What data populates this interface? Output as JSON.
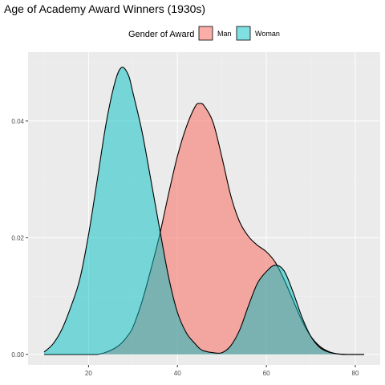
{
  "chart_data": {
    "type": "area",
    "title": "Age of Academy Award Winners (1930s)",
    "xlabel": "",
    "ylabel": "",
    "xlim": [
      6.4,
      85.6
    ],
    "ylim": [
      -0.0018,
      0.0518
    ],
    "x_ticks": [
      20,
      40,
      60,
      80
    ],
    "x_tick_labels": [
      "20",
      "40",
      "60",
      "80"
    ],
    "y_ticks": [
      0.0,
      0.02,
      0.04
    ],
    "y_tick_labels": [
      "0.00",
      "0.02",
      "0.04"
    ],
    "grid": true,
    "legend": {
      "title": "Gender of Award",
      "position": "top",
      "entries": [
        "Man",
        "Woman"
      ]
    },
    "x": [
      10,
      12,
      14,
      16,
      18,
      20,
      22,
      24,
      26,
      27.5,
      29,
      30,
      32,
      34,
      36,
      38,
      40,
      42,
      44,
      45,
      46,
      48,
      50,
      52,
      54,
      56,
      58,
      60,
      62,
      64,
      66,
      68,
      70,
      72,
      74,
      76,
      78,
      80,
      82
    ],
    "series": [
      {
        "name": "Man",
        "color": "#f8766d",
        "values": [
          0.0,
          0.0,
          0.0,
          0.0,
          0.0,
          0.0,
          0.0,
          0.0004,
          0.0011,
          0.002,
          0.0034,
          0.0047,
          0.009,
          0.0145,
          0.0205,
          0.0275,
          0.034,
          0.039,
          0.0425,
          0.043,
          0.0426,
          0.0398,
          0.0338,
          0.0272,
          0.0227,
          0.0202,
          0.0187,
          0.0176,
          0.0158,
          0.0128,
          0.0093,
          0.0058,
          0.0031,
          0.0014,
          0.0005,
          0.0001,
          0.0,
          0.0,
          0.0
        ]
      },
      {
        "name": "Woman",
        "color": "#00bfc4",
        "values": [
          0.0004,
          0.0018,
          0.0043,
          0.0081,
          0.0128,
          0.0205,
          0.0301,
          0.0398,
          0.0468,
          0.0492,
          0.0478,
          0.0448,
          0.0383,
          0.03,
          0.0215,
          0.0133,
          0.0072,
          0.0037,
          0.0018,
          0.001,
          0.0006,
          0.0003,
          0.0003,
          0.0015,
          0.0042,
          0.0084,
          0.0122,
          0.0142,
          0.0153,
          0.0143,
          0.0107,
          0.0064,
          0.0031,
          0.0012,
          0.0004,
          0.0001,
          0.0,
          0.0,
          0.0
        ]
      }
    ]
  }
}
